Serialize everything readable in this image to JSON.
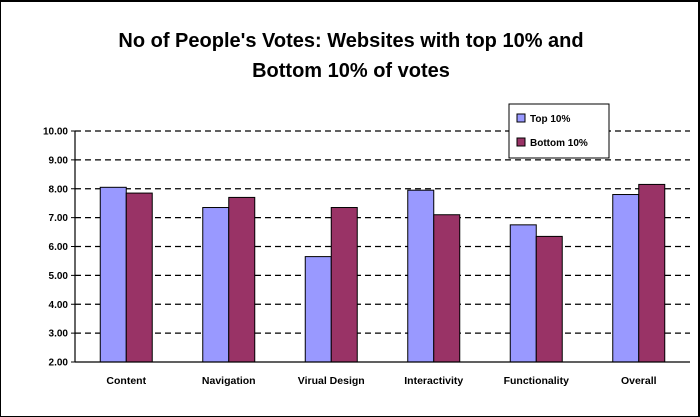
{
  "chart_data": {
    "type": "bar",
    "title_lines": [
      "No of People's Votes: Websites with top 10% and",
      "Bottom 10% of votes"
    ],
    "xlabel": "",
    "ylabel": "",
    "categories": [
      "Content",
      "Navigation",
      "Virual Design",
      "Interactivity",
      "Functionality",
      "Overall"
    ],
    "series": [
      {
        "name": "Top 10%",
        "values": [
          8.05,
          7.35,
          5.65,
          7.95,
          6.75,
          7.8
        ],
        "color": "#9999ff"
      },
      {
        "name": "Bottom 10%",
        "values": [
          7.85,
          7.7,
          7.35,
          7.1,
          6.35,
          8.15
        ],
        "color": "#993366"
      }
    ],
    "ylim": [
      2.0,
      10.0
    ],
    "yticks": [
      "2.00",
      "3.00",
      "4.00",
      "5.00",
      "6.00",
      "7.00",
      "8.00",
      "9.00",
      "10.00"
    ],
    "gridlines": "dashed",
    "legend_position": "top-right"
  }
}
